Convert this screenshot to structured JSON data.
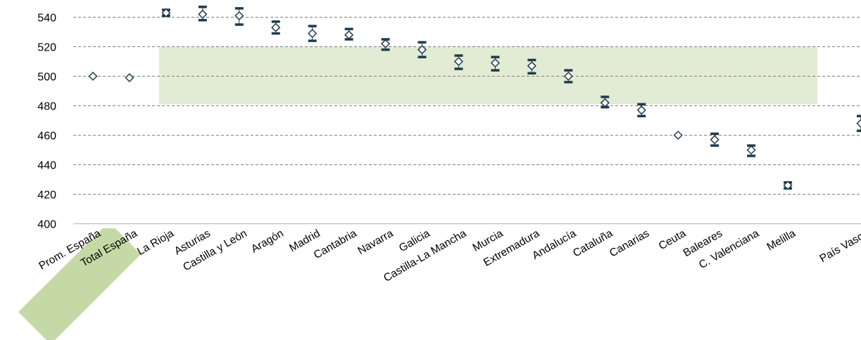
{
  "chart_data": {
    "type": "scatter",
    "title": "",
    "xlabel": "",
    "ylabel": "",
    "ylim": [
      400,
      550
    ],
    "yticks": [
      400,
      420,
      440,
      460,
      480,
      500,
      520,
      540
    ],
    "grid": true,
    "categories": [
      "Prom. España",
      "Total España",
      "La Rioja",
      "Asturias",
      "Castilla y León",
      "Aragón",
      "Madrid",
      "Cantabria",
      "Navarra",
      "Galicia",
      "Castilla-La Mancha",
      "Murcia",
      "Extremadura",
      "Andalucía",
      "Cataluña",
      "Canarias",
      "Ceuta",
      "Baleares",
      "C. Valenciana",
      "Melilla",
      "",
      "País Vasco"
    ],
    "values": [
      500,
      499,
      543,
      542,
      541,
      533,
      529,
      528,
      522,
      518,
      510,
      509,
      507,
      500,
      482,
      477,
      460,
      457,
      450,
      426,
      null,
      468
    ],
    "error_low": [
      499,
      498,
      541,
      538,
      535,
      529,
      524,
      525,
      518,
      513,
      505,
      504,
      502,
      496,
      479,
      473,
      459,
      453,
      446,
      424,
      null,
      463
    ],
    "error_high": [
      501,
      500,
      545,
      547,
      546,
      537,
      534,
      532,
      525,
      523,
      514,
      513,
      511,
      504,
      486,
      481,
      461,
      461,
      453,
      428,
      null,
      473
    ],
    "reference_band": {
      "y_from": 481,
      "y_to": 520,
      "x_from": "La Rioja",
      "x_to": "Melilla",
      "color": "#e2ebd3"
    },
    "highlighted_labels": [
      "Prom. España",
      "Total España"
    ],
    "colors": {
      "marker": "#1f3b4d",
      "whisker": "#1f3b4d",
      "band": "#e2ebd3",
      "label_highlight": "#c5d9a6",
      "grid": "#7f7f7f"
    }
  }
}
